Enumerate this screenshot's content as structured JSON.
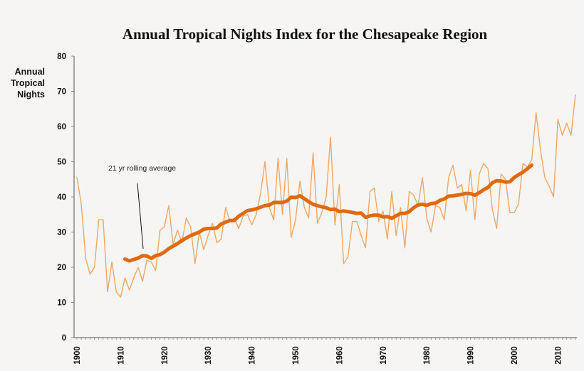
{
  "chart_data": {
    "type": "line",
    "title": "Annual Tropical Nights Index for the Chesapeake Region",
    "ylabel": "Annual\nTropical\nNights",
    "xlabel": "",
    "xlim": [
      1900,
      2014
    ],
    "ylim": [
      0,
      80
    ],
    "yticks": [
      0,
      10,
      20,
      30,
      40,
      50,
      60,
      70,
      80
    ],
    "xticks": [
      1900,
      1910,
      1920,
      1930,
      1940,
      1950,
      1960,
      1970,
      1980,
      1990,
      2000,
      2010
    ],
    "grid": false,
    "colors": {
      "annual": "#eea865",
      "rolling": "#e06a10"
    },
    "annotation": "21 yr rolling average",
    "series": [
      {
        "key": "annual",
        "x_start": 1900,
        "values": [
          45.5,
          38,
          22.5,
          18,
          20,
          33.5,
          33.5,
          13,
          21.5,
          13,
          11.5,
          17,
          13.5,
          17,
          20,
          16,
          22,
          21.5,
          19,
          30.5,
          31.5,
          37.5,
          26.5,
          30.5,
          27,
          34,
          31.5,
          21,
          30,
          25,
          29,
          32.5,
          27,
          28,
          37,
          33,
          34,
          31,
          34.5,
          35,
          32,
          35,
          41,
          50,
          37,
          33.5,
          51,
          35,
          51,
          28.5,
          33.5,
          44.5,
          37,
          34,
          52.5,
          32.5,
          35.5,
          40,
          57,
          32,
          43.5,
          21,
          23,
          33,
          33,
          29,
          25.5,
          41.5,
          42.5,
          33,
          36,
          28,
          41.5,
          29,
          37,
          25.5,
          41.5,
          40.5,
          37.5,
          45.5,
          34,
          30,
          37.5,
          37,
          33.5,
          45.5,
          49,
          42.5,
          43.5,
          36,
          47.5,
          33.5,
          46.5,
          49.5,
          48,
          36.5,
          31,
          46.5,
          45,
          35.5,
          35.5,
          38,
          49.5,
          48.5,
          50.5,
          64,
          53.5,
          45.5,
          43,
          40,
          62,
          57.5,
          61,
          57.5,
          69
        ]
      },
      {
        "key": "rolling",
        "name": "21 yr rolling average",
        "x_start": 1911,
        "values": [
          22.3,
          21.8,
          22.2,
          22.6,
          23.3,
          23.2,
          22.5,
          23.3,
          23.6,
          24.3,
          25.3,
          26,
          26.7,
          27.6,
          28.3,
          29,
          29.5,
          30,
          30.8,
          31,
          31,
          31.2,
          32.3,
          32.8,
          33.3,
          33.3,
          34.5,
          35.3,
          36.1,
          36.3,
          36.6,
          37.1,
          37.5,
          37.7,
          38.4,
          38.4,
          38.4,
          38.8,
          39.9,
          39.8,
          40.3,
          39.5,
          38.6,
          37.9,
          37.5,
          37.2,
          36.9,
          36.4,
          36.5,
          35.8,
          36,
          35.8,
          35.6,
          35.3,
          35.4,
          34.2,
          34.6,
          34.8,
          34.8,
          34.3,
          34.4,
          33.9,
          34.6,
          35.3,
          35.3,
          35.8,
          36.9,
          37.7,
          37.9,
          37.6,
          38.1,
          38.2,
          39,
          39.4,
          40.2,
          40.3,
          40.5,
          40.7,
          41,
          40.9,
          40.5,
          41.2,
          42,
          42.7,
          44,
          44.6,
          44.5,
          44.2,
          44.3,
          45.5,
          46.3,
          47,
          48,
          49
        ]
      }
    ]
  }
}
